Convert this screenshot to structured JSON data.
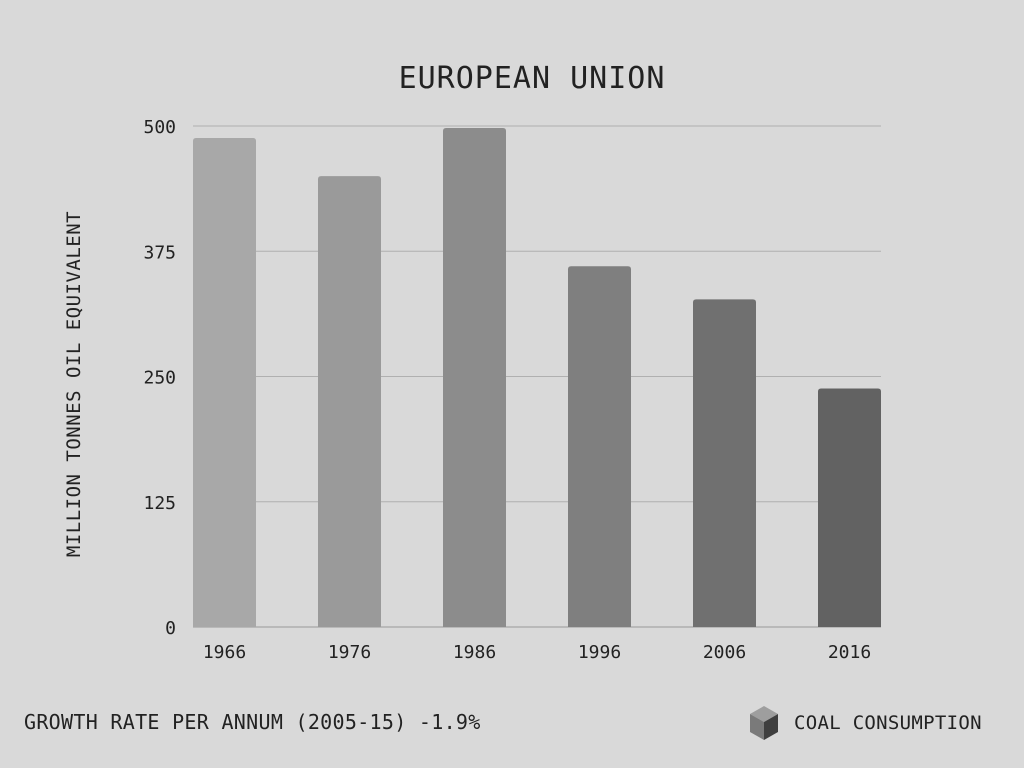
{
  "chart_data": {
    "type": "bar",
    "title": "EUROPEAN UNION",
    "ylabel": "MILLION TONNES OIL EQUIVALENT",
    "xlabel": "",
    "categories": [
      "1966",
      "1976",
      "1986",
      "1996",
      "2006",
      "2016"
    ],
    "values": [
      488,
      450,
      498,
      360,
      327,
      238
    ],
    "ylim": [
      0,
      500
    ],
    "yticks": [
      0,
      125,
      250,
      375,
      500
    ],
    "grid": true,
    "bar_colors": [
      "#a8a8a8",
      "#9a9a9a",
      "#8c8c8c",
      "#7f7f7f",
      "#707070",
      "#626262"
    ]
  },
  "footer": {
    "note": "GROWTH RATE PER ANNUM (2005-15) -1.9%"
  },
  "legend": {
    "label": "COAL CONSUMPTION",
    "icon": "cube-icon"
  },
  "colors": {
    "background": "#d9d9d9",
    "grid": "#b0b0b0",
    "axis": "#999999"
  }
}
